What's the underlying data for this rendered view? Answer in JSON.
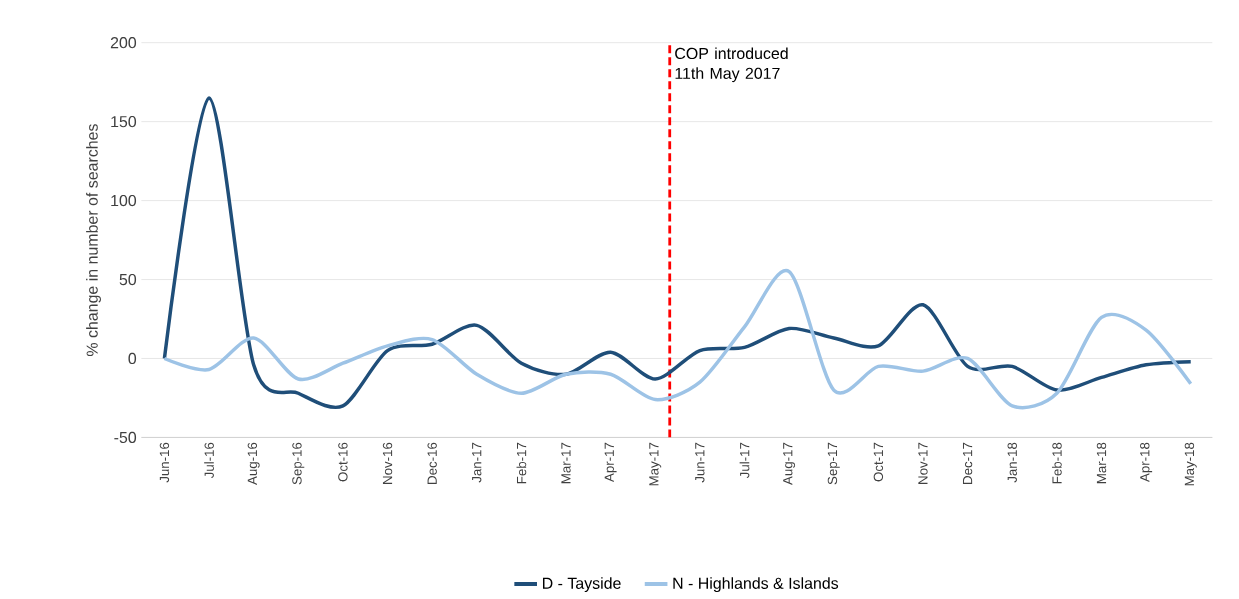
{
  "chart_data": {
    "type": "line",
    "ylabel": "% change in number of searches",
    "x": [
      "2016-06",
      "2016-07",
      "2016-08",
      "2016-09",
      "2016-10",
      "2016-11",
      "2016-12",
      "2017-01",
      "2017-02",
      "2017-03",
      "2017-04",
      "2017-05",
      "2017-06",
      "2017-07",
      "2017-08",
      "2017-09",
      "2017-10",
      "2017-11",
      "2017-12",
      "2018-01",
      "2018-02",
      "2018-03",
      "2018-04",
      "2018-05"
    ],
    "xlim": [
      "2016-05-16",
      "2018-05-16"
    ],
    "xticks": [
      {
        "value": "2016-06",
        "label": "Jun-16"
      },
      {
        "value": "2016-07",
        "label": "Jul-16"
      },
      {
        "value": "2016-08",
        "label": "Aug-16"
      },
      {
        "value": "2016-09",
        "label": "Sep-16"
      },
      {
        "value": "2016-10",
        "label": "Oct-16"
      },
      {
        "value": "2016-11",
        "label": "Nov-16"
      },
      {
        "value": "2016-12",
        "label": "Dec-16"
      },
      {
        "value": "2017-01",
        "label": "Jan-17"
      },
      {
        "value": "2017-02",
        "label": "Feb-17"
      },
      {
        "value": "2017-03",
        "label": "Mar-17"
      },
      {
        "value": "2017-04",
        "label": "Apr-17"
      },
      {
        "value": "2017-05",
        "label": "May-17"
      },
      {
        "value": "2017-06",
        "label": "Jun-17"
      },
      {
        "value": "2017-07",
        "label": "Jul-17"
      },
      {
        "value": "2017-08",
        "label": "Aug-17"
      },
      {
        "value": "2017-09",
        "label": "Sep-17"
      },
      {
        "value": "2017-10",
        "label": "Oct-17"
      },
      {
        "value": "2017-11",
        "label": "Nov-17"
      },
      {
        "value": "2017-12",
        "label": "Dec-17"
      },
      {
        "value": "2018-01",
        "label": "Jan-18"
      },
      {
        "value": "2018-02",
        "label": "Feb-18"
      },
      {
        "value": "2018-03",
        "label": "Mar-18"
      },
      {
        "value": "2018-04",
        "label": "Apr-18"
      },
      {
        "value": "2018-05",
        "label": "May-18"
      }
    ],
    "series": [
      {
        "name": "D - Tayside",
        "color": "#1f4e79",
        "values": [
          0,
          165,
          -4,
          -22,
          -30,
          5,
          9,
          21,
          -3,
          -10,
          4,
          -13,
          5,
          7,
          19,
          13,
          8,
          34,
          -5,
          -5,
          -20,
          -12,
          -4,
          -2
        ]
      },
      {
        "name": "N - Highlands & Islands",
        "color": "#9dc3e6",
        "values": [
          0,
          -7,
          13,
          -13,
          -3,
          8,
          12,
          -10,
          -22,
          -10,
          -10,
          -26,
          -15,
          20,
          55,
          -20,
          -5,
          -8,
          0,
          -30,
          -22,
          26,
          18,
          -16
        ]
      }
    ],
    "ylim": [
      -50,
      200
    ],
    "yticks": [
      -50,
      0,
      50,
      100,
      150,
      200
    ],
    "grid": "y",
    "legend": "bottom",
    "marker": "none",
    "line_style": "solid",
    "ref_lines": [
      {
        "axis": "x",
        "value": "2017-05-11",
        "label": "COP introduced 11th May 2017",
        "color": "#ff0000",
        "line_style": "dashed"
      }
    ]
  }
}
